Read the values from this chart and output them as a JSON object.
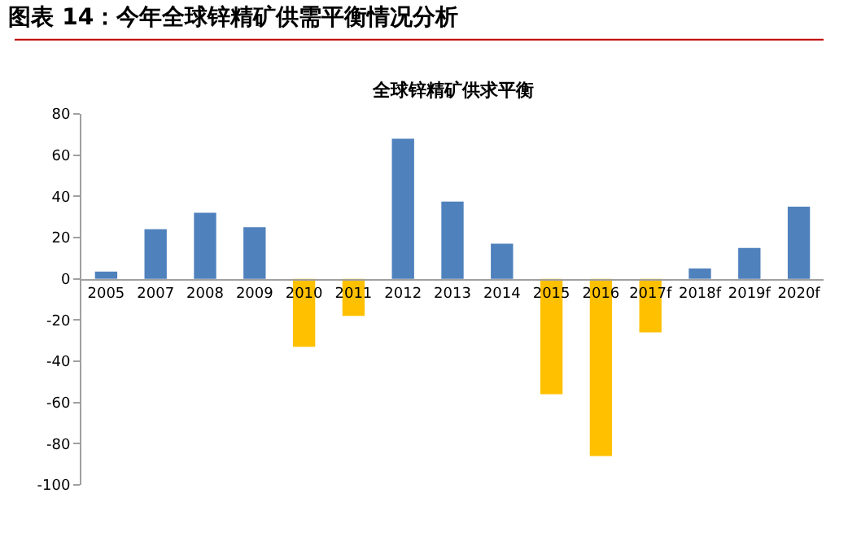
{
  "chart_data": {
    "type": "bar",
    "title": "图表 14：今年全球锌精矿供需平衡情况分析",
    "subtitle": "全球锌精矿供求平衡",
    "categories": [
      "2005",
      "2007",
      "2008",
      "2009",
      "2010",
      "2011",
      "2012",
      "2013",
      "2014",
      "2015",
      "2016",
      "2017f",
      "2018f",
      "2019f",
      "2020f"
    ],
    "values": [
      3.5,
      24,
      32,
      25,
      -33,
      -18,
      68,
      37.5,
      17,
      -56,
      -86,
      -26,
      5,
      15,
      35
    ],
    "colors": [
      "#4f81bd",
      "#4f81bd",
      "#4f81bd",
      "#4f81bd",
      "#ffc000",
      "#ffc000",
      "#4f81bd",
      "#4f81bd",
      "#4f81bd",
      "#ffc000",
      "#ffc000",
      "#ffc000",
      "#4f81bd",
      "#4f81bd",
      "#4f81bd"
    ],
    "ylim": [
      -100,
      80
    ],
    "yticks": [
      -100,
      -80,
      -60,
      -40,
      -20,
      0,
      20,
      40,
      60,
      80
    ]
  }
}
